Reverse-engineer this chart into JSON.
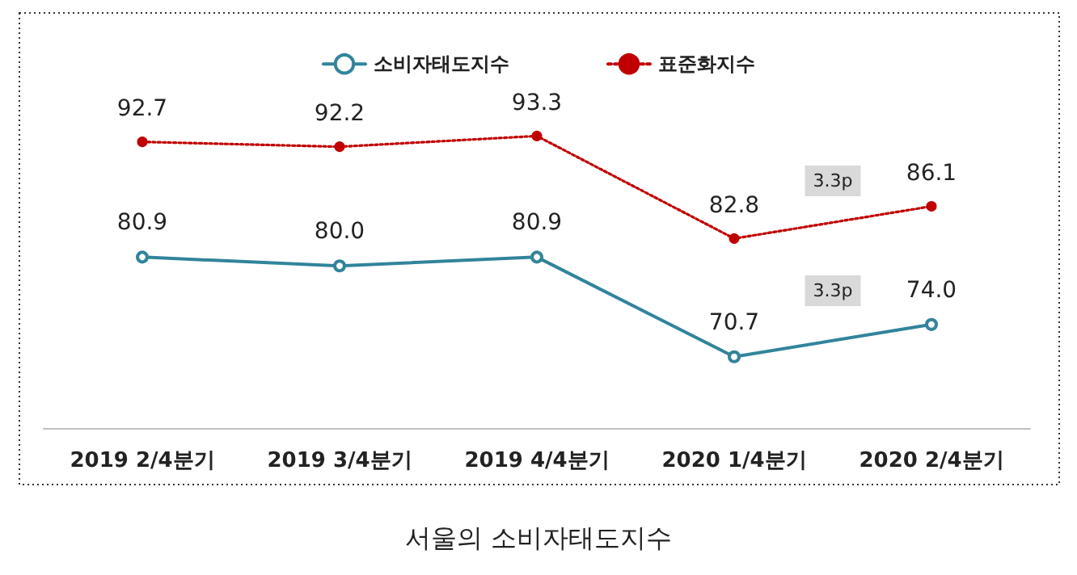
{
  "chart_data": {
    "type": "line",
    "title": "서울의 소비자태도지수",
    "categories": [
      "2019 2/4분기",
      "2019 3/4분기",
      "2019 4/4분기",
      "2020 1/4분기",
      "2020 2/4분기"
    ],
    "series": [
      {
        "name": "소비자태도지수",
        "color": "#31849b",
        "values": [
          80.9,
          80.0,
          80.9,
          70.7,
          74.0
        ],
        "value_labels": [
          "80.9",
          "80.0",
          "80.9",
          "70.7",
          "74.0"
        ],
        "line_style": "solid"
      },
      {
        "name": "표준화지수",
        "color": "#c00000",
        "values": [
          92.7,
          92.2,
          93.3,
          82.8,
          86.1
        ],
        "value_labels": [
          "92.7",
          "92.2",
          "93.3",
          "82.8",
          "86.1"
        ],
        "line_style": "dotted"
      }
    ],
    "annotations": [
      "3.3p",
      "3.3p"
    ],
    "legend": "top",
    "marker": "circle",
    "grid": false
  }
}
